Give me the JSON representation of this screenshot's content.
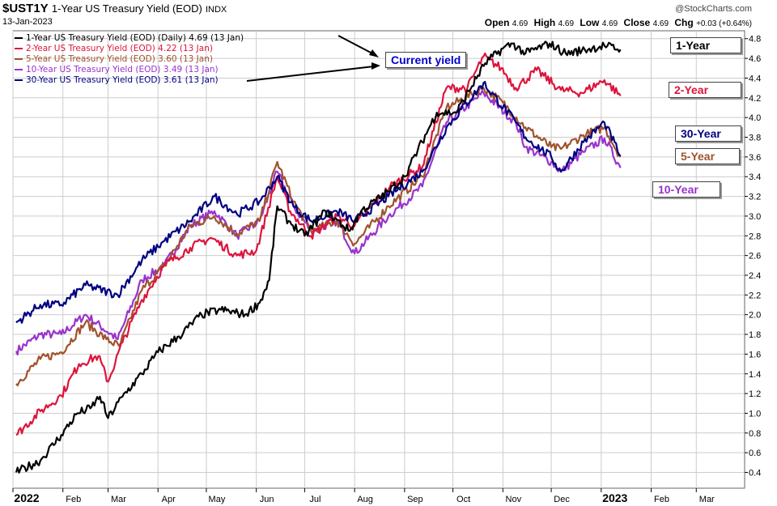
{
  "header": {
    "symbol": "$UST1Y",
    "name": "1-Year US Treasury Yield (EOD)",
    "exchange": "INDX",
    "date": "13-Jan-2023",
    "source": "@StockCharts.com",
    "quote": {
      "open_label": "Open",
      "open": "4.69",
      "high_label": "High",
      "high": "4.69",
      "low_label": "Low",
      "low": "4.69",
      "close_label": "Close",
      "close": "4.69",
      "chg_label": "Chg",
      "chg": "+0.03 (+0.64%)"
    }
  },
  "legend": [
    "1-Year US Treasury Yield (EOD) (Daily) 4.69 (13 Jan)",
    "2-Year US Treasury Yield (EOD) 4.22 (13 Jan)",
    "5-Year US Treasury Yield (EOD) 3.60 (13 Jan)",
    "10-Year US Treasury Yield (EOD) 3.49 (13 Jan)",
    "30-Year US Treasury Yield (EOD) 3.61 (13 Jan)"
  ],
  "annotation": "Current yield",
  "end_labels": [
    "1-Year",
    "2-Year",
    "30-Year",
    "5-Year",
    "10-Year"
  ],
  "colors": {
    "y1": "#000000",
    "y2": "#dc143c",
    "y5": "#a0522d",
    "y10": "#9932cc",
    "y30": "#000080",
    "annotation_text": "#0000cc",
    "grid": "#cccccc"
  },
  "chart_data": {
    "type": "line",
    "x_ticks": [
      "2022",
      "Feb",
      "Mar",
      "Apr",
      "May",
      "Jun",
      "Jul",
      "Aug",
      "Sep",
      "Oct",
      "Nov",
      "Dec",
      "2023",
      "Feb",
      "Mar"
    ],
    "xlim": [
      "2022-01-01",
      "2023-03-31"
    ],
    "ylim": [
      0.24,
      4.88
    ],
    "y_ticks": [
      0.4,
      0.6,
      0.8,
      1.0,
      1.2,
      1.4,
      1.6,
      1.8,
      2.0,
      2.2,
      2.4,
      2.6,
      2.8,
      3.0,
      3.2,
      3.4,
      3.6,
      3.8,
      4.0,
      4.2,
      4.4,
      4.6,
      4.8
    ],
    "grid": true,
    "series": [
      {
        "name": "1-Year",
        "points": [
          [
            "2022-01-03",
            0.4
          ],
          [
            "2022-01-18",
            0.52
          ],
          [
            "2022-01-31",
            0.78
          ],
          [
            "2022-02-10",
            1.0
          ],
          [
            "2022-02-18",
            1.05
          ],
          [
            "2022-02-24",
            1.17
          ],
          [
            "2022-03-01",
            0.95
          ],
          [
            "2022-03-10",
            1.17
          ],
          [
            "2022-03-22",
            1.4
          ],
          [
            "2022-04-01",
            1.62
          ],
          [
            "2022-04-14",
            1.78
          ],
          [
            "2022-04-28",
            2.0
          ],
          [
            "2022-05-10",
            2.05
          ],
          [
            "2022-05-25",
            2.0
          ],
          [
            "2022-06-03",
            2.12
          ],
          [
            "2022-06-09",
            2.35
          ],
          [
            "2022-06-14",
            3.1
          ],
          [
            "2022-06-21",
            2.95
          ],
          [
            "2022-07-01",
            2.8
          ],
          [
            "2022-07-14",
            3.05
          ],
          [
            "2022-07-29",
            2.85
          ],
          [
            "2022-08-05",
            3.05
          ],
          [
            "2022-08-22",
            3.25
          ],
          [
            "2022-09-01",
            3.4
          ],
          [
            "2022-09-21",
            4.05
          ],
          [
            "2022-10-03",
            4.05
          ],
          [
            "2022-10-21",
            4.55
          ],
          [
            "2022-11-01",
            4.7
          ],
          [
            "2022-11-07",
            4.75
          ],
          [
            "2022-11-15",
            4.65
          ],
          [
            "2022-11-30",
            4.75
          ],
          [
            "2022-12-10",
            4.65
          ],
          [
            "2022-12-20",
            4.68
          ],
          [
            "2023-01-03",
            4.73
          ],
          [
            "2023-01-13",
            4.69
          ]
        ]
      },
      {
        "name": "2-Year",
        "points": [
          [
            "2022-01-03",
            0.78
          ],
          [
            "2022-01-18",
            1.02
          ],
          [
            "2022-01-31",
            1.18
          ],
          [
            "2022-02-11",
            1.5
          ],
          [
            "2022-02-23",
            1.58
          ],
          [
            "2022-03-01",
            1.32
          ],
          [
            "2022-03-10",
            1.72
          ],
          [
            "2022-03-22",
            2.15
          ],
          [
            "2022-04-05",
            2.5
          ],
          [
            "2022-04-21",
            2.68
          ],
          [
            "2022-05-04",
            2.78
          ],
          [
            "2022-05-20",
            2.6
          ],
          [
            "2022-06-01",
            2.65
          ],
          [
            "2022-06-14",
            3.4
          ],
          [
            "2022-06-22",
            3.05
          ],
          [
            "2022-07-05",
            2.8
          ],
          [
            "2022-07-21",
            3.0
          ],
          [
            "2022-08-01",
            2.9
          ],
          [
            "2022-08-23",
            3.3
          ],
          [
            "2022-09-12",
            3.5
          ],
          [
            "2022-09-27",
            4.3
          ],
          [
            "2022-10-10",
            4.3
          ],
          [
            "2022-10-20",
            4.62
          ],
          [
            "2022-10-31",
            4.5
          ],
          [
            "2022-11-09",
            4.3
          ],
          [
            "2022-11-22",
            4.48
          ],
          [
            "2022-12-07",
            4.28
          ],
          [
            "2022-12-20",
            4.25
          ],
          [
            "2023-01-03",
            4.38
          ],
          [
            "2023-01-13",
            4.22
          ]
        ]
      },
      {
        "name": "5-Year",
        "points": [
          [
            "2022-01-03",
            1.3
          ],
          [
            "2022-01-18",
            1.55
          ],
          [
            "2022-01-31",
            1.62
          ],
          [
            "2022-02-15",
            1.92
          ],
          [
            "2022-02-28",
            1.75
          ],
          [
            "2022-03-08",
            1.68
          ],
          [
            "2022-03-22",
            2.25
          ],
          [
            "2022-04-05",
            2.5
          ],
          [
            "2022-04-21",
            2.9
          ],
          [
            "2022-05-06",
            3.0
          ],
          [
            "2022-05-20",
            2.82
          ],
          [
            "2022-06-03",
            2.95
          ],
          [
            "2022-06-14",
            3.55
          ],
          [
            "2022-06-24",
            3.15
          ],
          [
            "2022-07-05",
            2.85
          ],
          [
            "2022-07-21",
            2.95
          ],
          [
            "2022-08-01",
            2.72
          ],
          [
            "2022-08-22",
            3.1
          ],
          [
            "2022-09-12",
            3.4
          ],
          [
            "2022-09-27",
            4.1
          ],
          [
            "2022-10-20",
            4.3
          ],
          [
            "2022-11-01",
            4.15
          ],
          [
            "2022-11-15",
            3.9
          ],
          [
            "2022-12-01",
            3.7
          ],
          [
            "2022-12-07",
            3.68
          ],
          [
            "2022-12-21",
            3.82
          ],
          [
            "2023-01-03",
            3.9
          ],
          [
            "2023-01-13",
            3.6
          ]
        ]
      },
      {
        "name": "10-Year",
        "points": [
          [
            "2022-01-03",
            1.63
          ],
          [
            "2022-01-18",
            1.8
          ],
          [
            "2022-01-31",
            1.8
          ],
          [
            "2022-02-15",
            2.0
          ],
          [
            "2022-03-07",
            1.75
          ],
          [
            "2022-03-22",
            2.35
          ],
          [
            "2022-04-05",
            2.5
          ],
          [
            "2022-04-21",
            2.9
          ],
          [
            "2022-05-06",
            3.05
          ],
          [
            "2022-05-20",
            2.8
          ],
          [
            "2022-06-03",
            2.95
          ],
          [
            "2022-06-14",
            3.45
          ],
          [
            "2022-06-24",
            3.1
          ],
          [
            "2022-07-05",
            2.85
          ],
          [
            "2022-07-21",
            2.95
          ],
          [
            "2022-08-01",
            2.62
          ],
          [
            "2022-08-22",
            3.0
          ],
          [
            "2022-09-12",
            3.3
          ],
          [
            "2022-09-27",
            3.95
          ],
          [
            "2022-10-20",
            4.25
          ],
          [
            "2022-11-09",
            3.95
          ],
          [
            "2022-11-15",
            3.7
          ],
          [
            "2022-12-01",
            3.55
          ],
          [
            "2022-12-07",
            3.45
          ],
          [
            "2022-12-21",
            3.65
          ],
          [
            "2023-01-03",
            3.79
          ],
          [
            "2023-01-13",
            3.49
          ]
        ]
      },
      {
        "name": "30-Year",
        "points": [
          [
            "2022-01-03",
            1.92
          ],
          [
            "2022-01-18",
            2.1
          ],
          [
            "2022-01-31",
            2.1
          ],
          [
            "2022-02-15",
            2.3
          ],
          [
            "2022-03-07",
            2.2
          ],
          [
            "2022-03-22",
            2.55
          ],
          [
            "2022-04-05",
            2.75
          ],
          [
            "2022-04-21",
            2.95
          ],
          [
            "2022-05-06",
            3.2
          ],
          [
            "2022-05-20",
            3.02
          ],
          [
            "2022-06-03",
            3.15
          ],
          [
            "2022-06-14",
            3.4
          ],
          [
            "2022-06-24",
            3.1
          ],
          [
            "2022-07-05",
            2.95
          ],
          [
            "2022-07-21",
            3.05
          ],
          [
            "2022-08-01",
            2.95
          ],
          [
            "2022-08-22",
            3.2
          ],
          [
            "2022-09-12",
            3.45
          ],
          [
            "2022-09-27",
            3.9
          ],
          [
            "2022-10-20",
            4.35
          ],
          [
            "2022-11-09",
            3.95
          ],
          [
            "2022-11-15",
            3.8
          ],
          [
            "2022-12-01",
            3.6
          ],
          [
            "2022-12-07",
            3.45
          ],
          [
            "2022-12-21",
            3.75
          ],
          [
            "2023-01-03",
            3.95
          ],
          [
            "2023-01-13",
            3.61
          ]
        ]
      }
    ]
  }
}
